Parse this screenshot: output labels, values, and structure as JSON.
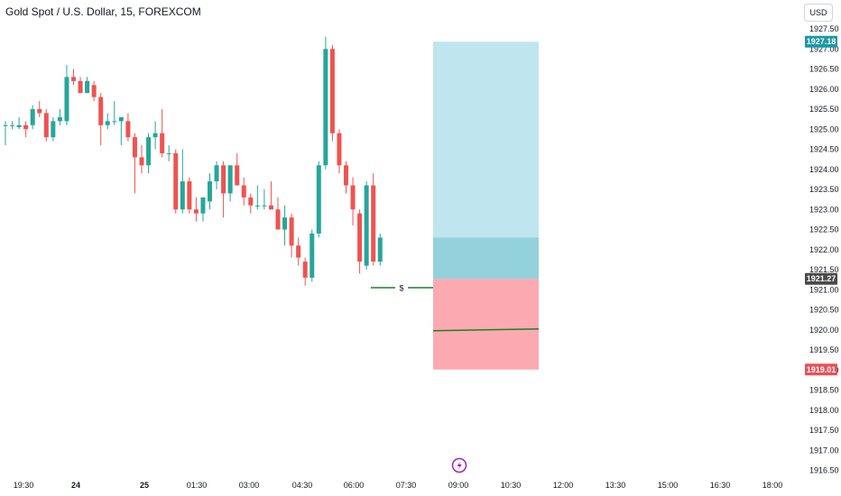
{
  "header": {
    "title": "Gold Spot / U.S. Dollar, 15, FOREXCOM"
  },
  "toolbar": {
    "currency_label": "USD"
  },
  "colors": {
    "up": "#26a69a",
    "down": "#ef5350",
    "profit_zone": "#bfe6ee",
    "profit_zone_overlap": "#93d1dd",
    "loss_zone": "#fcaab2",
    "price_tag_current": "#4a4a4a",
    "price_tag_target": "#1b98a6",
    "price_tag_stop": "#e8525a",
    "entry_line": "#1a7f2a"
  },
  "icons": {
    "replay": "lightning-icon",
    "marker": "dollar-label"
  },
  "chart_data": {
    "type": "candlestick",
    "title": "Gold Spot / U.S. Dollar, 15, FOREXCOM",
    "y_ticks": [
      "1927.50",
      "1927.00",
      "1926.50",
      "1926.00",
      "1925.50",
      "1925.00",
      "1924.50",
      "1924.00",
      "1923.50",
      "1923.00",
      "1922.50",
      "1922.00",
      "1921.50",
      "1921.00",
      "1920.50",
      "1920.00",
      "1919.50",
      "1919.00",
      "1918.50",
      "1918.00",
      "1917.50",
      "1917.00",
      "1916.50"
    ],
    "ylim": [
      1916.4,
      1927.8
    ],
    "x_ticks": [
      "19:30",
      "24",
      "25",
      "01:30",
      "03:00",
      "04:30",
      "06:00",
      "07:30",
      "09:00",
      "10:30",
      "12:00",
      "13:30",
      "15:00",
      "16:30",
      "18:00"
    ],
    "x_ticks_bold": [
      "24",
      "25"
    ],
    "price_tags": {
      "target": "1927.18",
      "current": "1921.27",
      "stop": "1919.01"
    },
    "position": {
      "entry": 1921.27,
      "target": 1927.18,
      "stop": 1919.01,
      "stop_zone_line": 1920.0,
      "marker_level": 1921.05,
      "marker_label": "$"
    },
    "candles": [
      {
        "o": 1925.1,
        "h": 1925.2,
        "l": 1924.6,
        "c": 1925.1
      },
      {
        "o": 1925.1,
        "h": 1925.2,
        "l": 1925.0,
        "c": 1925.1
      },
      {
        "o": 1925.05,
        "h": 1925.3,
        "l": 1925.0,
        "c": 1925.1
      },
      {
        "o": 1925.1,
        "h": 1925.2,
        "l": 1924.8,
        "c": 1925.0
      },
      {
        "o": 1925.1,
        "h": 1925.6,
        "l": 1925.0,
        "c": 1925.5
      },
      {
        "o": 1925.5,
        "h": 1925.7,
        "l": 1925.3,
        "c": 1925.4
      },
      {
        "o": 1925.4,
        "h": 1925.5,
        "l": 1924.7,
        "c": 1924.8
      },
      {
        "o": 1924.8,
        "h": 1925.3,
        "l": 1924.7,
        "c": 1925.2
      },
      {
        "o": 1925.2,
        "h": 1925.5,
        "l": 1925.1,
        "c": 1925.3
      },
      {
        "o": 1925.2,
        "h": 1926.6,
        "l": 1925.1,
        "c": 1926.3
      },
      {
        "o": 1926.3,
        "h": 1926.5,
        "l": 1926.1,
        "c": 1926.2
      },
      {
        "o": 1926.2,
        "h": 1926.3,
        "l": 1925.9,
        "c": 1925.9
      },
      {
        "o": 1925.9,
        "h": 1926.3,
        "l": 1925.9,
        "c": 1926.2
      },
      {
        "o": 1926.1,
        "h": 1926.2,
        "l": 1925.7,
        "c": 1925.8
      },
      {
        "o": 1925.8,
        "h": 1925.9,
        "l": 1924.6,
        "c": 1925.1
      },
      {
        "o": 1925.1,
        "h": 1925.4,
        "l": 1925.0,
        "c": 1925.2
      },
      {
        "o": 1925.2,
        "h": 1925.7,
        "l": 1925.1,
        "c": 1925.2
      },
      {
        "o": 1925.2,
        "h": 1925.3,
        "l": 1924.6,
        "c": 1925.3
      },
      {
        "o": 1925.2,
        "h": 1925.4,
        "l": 1924.7,
        "c": 1924.8
      },
      {
        "o": 1924.8,
        "h": 1924.9,
        "l": 1923.4,
        "c": 1924.3
      },
      {
        "o": 1924.3,
        "h": 1924.6,
        "l": 1923.9,
        "c": 1924.1
      },
      {
        "o": 1924.1,
        "h": 1924.9,
        "l": 1923.9,
        "c": 1924.8
      },
      {
        "o": 1924.8,
        "h": 1925.2,
        "l": 1924.5,
        "c": 1924.9
      },
      {
        "o": 1924.9,
        "h": 1925.5,
        "l": 1924.3,
        "c": 1924.4
      },
      {
        "o": 1924.4,
        "h": 1924.6,
        "l": 1924.2,
        "c": 1924.4
      },
      {
        "o": 1924.4,
        "h": 1924.5,
        "l": 1922.9,
        "c": 1923.0
      },
      {
        "o": 1923.0,
        "h": 1924.5,
        "l": 1922.9,
        "c": 1923.7
      },
      {
        "o": 1923.7,
        "h": 1923.8,
        "l": 1922.9,
        "c": 1923.0
      },
      {
        "o": 1923.0,
        "h": 1923.3,
        "l": 1922.7,
        "c": 1922.9
      },
      {
        "o": 1922.9,
        "h": 1923.3,
        "l": 1922.7,
        "c": 1923.3
      },
      {
        "o": 1923.2,
        "h": 1923.9,
        "l": 1923.0,
        "c": 1923.7
      },
      {
        "o": 1923.7,
        "h": 1924.2,
        "l": 1923.5,
        "c": 1924.1
      },
      {
        "o": 1924.1,
        "h": 1924.2,
        "l": 1922.8,
        "c": 1923.4
      },
      {
        "o": 1923.4,
        "h": 1924.1,
        "l": 1923.2,
        "c": 1924.1
      },
      {
        "o": 1924.1,
        "h": 1924.4,
        "l": 1923.6,
        "c": 1923.6
      },
      {
        "o": 1923.6,
        "h": 1923.8,
        "l": 1923.1,
        "c": 1923.3
      },
      {
        "o": 1923.3,
        "h": 1923.4,
        "l": 1922.9,
        "c": 1923.1
      },
      {
        "o": 1923.1,
        "h": 1923.6,
        "l": 1923.0,
        "c": 1923.1
      },
      {
        "o": 1923.1,
        "h": 1923.5,
        "l": 1923.0,
        "c": 1923.1
      },
      {
        "o": 1923.1,
        "h": 1923.7,
        "l": 1923.0,
        "c": 1923.0
      },
      {
        "o": 1923.0,
        "h": 1923.3,
        "l": 1922.5,
        "c": 1922.5
      },
      {
        "o": 1922.5,
        "h": 1923.1,
        "l": 1922.1,
        "c": 1922.8
      },
      {
        "o": 1922.8,
        "h": 1922.9,
        "l": 1921.8,
        "c": 1922.1
      },
      {
        "o": 1922.1,
        "h": 1922.3,
        "l": 1921.6,
        "c": 1921.8
      },
      {
        "o": 1921.7,
        "h": 1921.8,
        "l": 1921.1,
        "c": 1921.3
      },
      {
        "o": 1921.3,
        "h": 1922.5,
        "l": 1921.2,
        "c": 1922.4
      },
      {
        "o": 1922.4,
        "h": 1924.2,
        "l": 1922.3,
        "c": 1924.1
      },
      {
        "o": 1924.1,
        "h": 1927.3,
        "l": 1924.0,
        "c": 1927.0
      },
      {
        "o": 1927.0,
        "h": 1927.1,
        "l": 1924.7,
        "c": 1924.9
      },
      {
        "o": 1924.9,
        "h": 1925.0,
        "l": 1923.9,
        "c": 1924.1
      },
      {
        "o": 1924.1,
        "h": 1924.2,
        "l": 1923.4,
        "c": 1923.6
      },
      {
        "o": 1923.6,
        "h": 1923.8,
        "l": 1922.6,
        "c": 1923.0
      },
      {
        "o": 1922.9,
        "h": 1923.0,
        "l": 1921.4,
        "c": 1921.7
      },
      {
        "o": 1921.6,
        "h": 1923.7,
        "l": 1921.5,
        "c": 1923.6
      },
      {
        "o": 1923.6,
        "h": 1923.9,
        "l": 1921.6,
        "c": 1921.7
      },
      {
        "o": 1921.7,
        "h": 1922.4,
        "l": 1921.6,
        "c": 1922.3
      }
    ]
  }
}
